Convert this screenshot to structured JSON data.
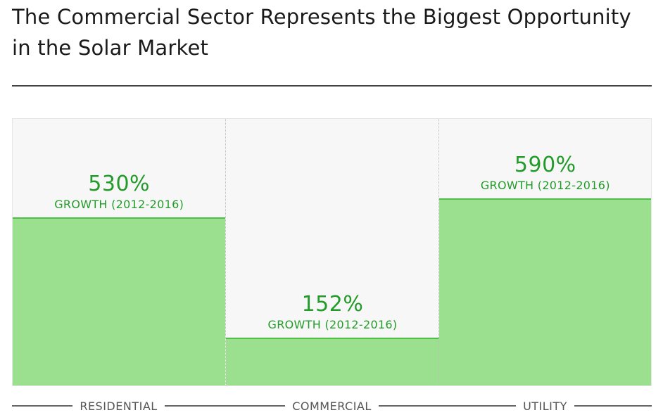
{
  "title": "The Commercial Sector Represents the Biggest Opportunity in the Solar Market",
  "colors": {
    "bar_fill": "#9ae08f",
    "bar_edge": "#4fbf4a",
    "label_green": "#239b2a",
    "panel_bg": "#f7f7f7"
  },
  "chart_data": {
    "type": "bar",
    "title": "The Commercial Sector Represents the Biggest Opportunity in the Solar Market",
    "categories": [
      "RESIDENTIAL",
      "COMMERCIAL",
      "UTILITY"
    ],
    "values": [
      530,
      152,
      590
    ],
    "value_labels": [
      "530%",
      "152%",
      "590%"
    ],
    "value_sublabel": "GROWTH (2012-2016)",
    "unit": "%",
    "xlabel": "",
    "ylabel": "",
    "ylim": [
      0,
      842
    ],
    "grid": false,
    "legend": "none"
  }
}
